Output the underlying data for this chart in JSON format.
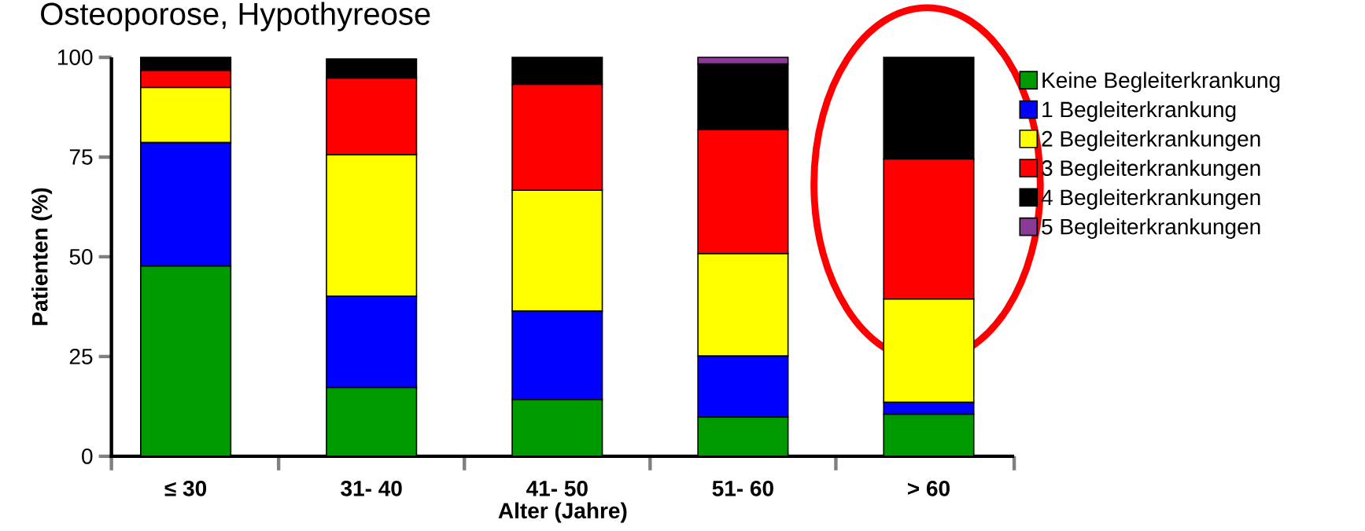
{
  "chart_data": {
    "type": "bar",
    "stacked": true,
    "title": "Osteoporose, Hypothyreose",
    "xlabel": "Alter (Jahre)",
    "ylabel": "Patienten (%)",
    "categories": [
      "≤ 30",
      "31- 40",
      "41- 50",
      "51- 60",
      "> 60"
    ],
    "series": [
      {
        "name": "Keine Begleiterkrankung",
        "color": "#009900",
        "values": [
          47.7,
          17.2,
          14.2,
          9.8,
          10.5
        ]
      },
      {
        "name": "1 Begleiterkrankung",
        "color": "#0000ff",
        "values": [
          30.9,
          22.9,
          22.2,
          15.3,
          3.0
        ]
      },
      {
        "name": "2 Begleiterkrankungen",
        "color": "#ffff00",
        "values": [
          13.8,
          35.5,
          30.3,
          25.7,
          25.9
        ]
      },
      {
        "name": "3 Begleiterkrankungen",
        "color": "#ff0000",
        "values": [
          4.3,
          19.2,
          26.5,
          31.1,
          35.1
        ]
      },
      {
        "name": "4 Begleiterkrankungen",
        "color": "#000000",
        "values": [
          3.3,
          4.8,
          6.8,
          16.4,
          25.5
        ]
      },
      {
        "name": "5 Begleiterkrankungen",
        "color": "#8b3a96",
        "values": [
          0,
          0,
          0,
          1.7,
          0
        ]
      }
    ],
    "ylim": [
      0,
      100
    ],
    "yticks": [
      0,
      25,
      50,
      75,
      100
    ],
    "grid": false,
    "legend": "right"
  }
}
